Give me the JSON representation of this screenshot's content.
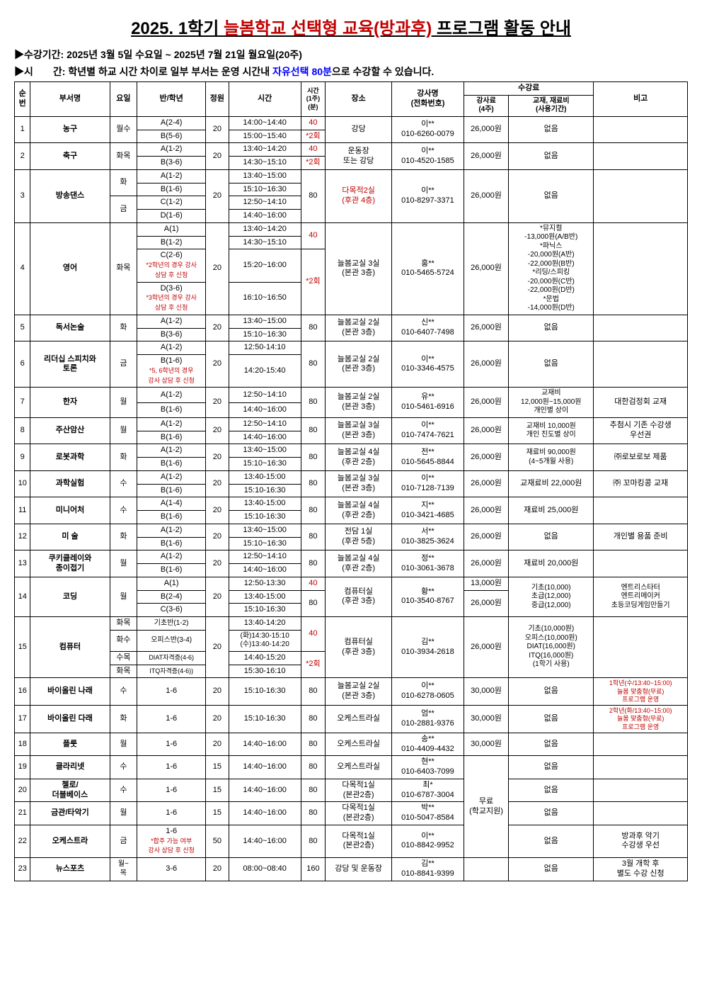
{
  "title_prefix": "2025. 1학기 ",
  "title_red": "늘봄학교 선택형 교육(방과후)",
  "title_suffix": " 프로그램 활동 안내",
  "period_label": "▶수강기간: 2025년 3월 5일 수요일 ~ 2025년 7월 21일 월요일(20주)",
  "time_label_prefix": "▶시　　간: 학년별 하교 시간 차이로 일부 부서는 운영 시간내 ",
  "time_label_blue": "자유선택 80분",
  "time_label_suffix": "으로 수강할 수 있습니다.",
  "headers": {
    "no": "순번",
    "dept": "부서명",
    "day": "요일",
    "class": "반/학년",
    "cap": "정원",
    "time": "시간",
    "dur": "시간\n(1주)\n(분)",
    "place": "장소",
    "teacher": "강사명\n(전화번호)",
    "fee_group": "수강료",
    "fee1": "강사료\n(4주)",
    "fee2": "교재, 재료비\n(사용기간)",
    "note": "비고"
  },
  "r1": {
    "no": "1",
    "dept": "농구",
    "day": "월수",
    "classA": "A(2-4)",
    "classB": "B(5-6)",
    "cap": "20",
    "timeA": "14:00~14:40",
    "timeB": "15:00~15:40",
    "dur": "40",
    "dur2": "*2회",
    "place": "강당",
    "teacher": "이**\n010-6260-0079",
    "fee1": "26,000원",
    "fee2": "없음",
    "note": ""
  },
  "r2": {
    "no": "2",
    "dept": "축구",
    "day": "화목",
    "classA": "A(1-2)",
    "classB": "B(3-6)",
    "cap": "20",
    "timeA": "13:40~14:20",
    "timeB": "14:30~15:10",
    "dur": "40",
    "dur2": "*2회",
    "place": "운동장\n또는 강당",
    "teacher": "이**\n010-4520-1585",
    "fee1": "26,000원",
    "fee2": "없음",
    "note": ""
  },
  "r3": {
    "no": "3",
    "dept": "방송댄스",
    "dayA": "화",
    "dayB": "금",
    "classA": "A(1-2)",
    "classB": "B(1-6)",
    "classC": "C(1-2)",
    "classD": "D(1-6)",
    "cap": "20",
    "timeA": "13:40~15:00",
    "timeB": "15:10~16:30",
    "timeC": "12:50~14:10",
    "timeD": "14:40~16:00",
    "dur": "80",
    "place": "다목적2실\n(후관 4층)",
    "teacher": "이**\n010-8297-3371",
    "fee1": "26,000원",
    "fee2": "없음",
    "note": ""
  },
  "r4": {
    "no": "4",
    "dept": "영어",
    "day": "화목",
    "classA": "A(1)",
    "classB": "B(1-2)",
    "classC": "C(2-6)",
    "classC_note": "*2학년의 경우 강사\n상담 후 신청",
    "classD": "D(3-6)",
    "classD_note": "*3학년의 경우 강사\n상담 후 신청",
    "cap": "20",
    "timeA": "13:40~14:20",
    "timeB": "14:30~15:10",
    "timeC": "15:20~16:00",
    "timeD": "16:10~16:50",
    "dur": "40",
    "dur2": "*2회",
    "place": "늘봄교실 3실\n(본관 3층)",
    "teacher": "홍**\n010-5465-5724",
    "fee1": "26,000원",
    "fee2": "*뮤지컬\n-13,000원(A/B반)\n*파닉스\n-20,000원(A반)\n-22,000원(B반)\n*리딩/스피킹\n-20,000원(C반)\n-22,000원(D반)\n*문법\n-14,000원(D반)",
    "note": ""
  },
  "r5": {
    "no": "5",
    "dept": "독서논술",
    "day": "화",
    "classA": "A(1-2)",
    "classB": "B(3-6)",
    "cap": "20",
    "timeA": "13:40~15:00",
    "timeB": "15:10~16:30",
    "dur": "80",
    "place": "늘봄교실 2실\n(본관 3층)",
    "teacher": "신**\n010-6407-7498",
    "fee1": "26,000원",
    "fee2": "없음",
    "note": ""
  },
  "r6": {
    "no": "6",
    "dept": "리더십 스피치와\n토론",
    "day": "금",
    "classA": "A(1-2)",
    "classB": "B(1-6)",
    "classB_note": "*5, 6학년의 경우\n강사 상담 후 신청",
    "cap": "20",
    "timeA": "12:50-14:10",
    "timeB": "14:20-15:40",
    "dur": "80",
    "place": "늘봄교실 2실\n(본관 3층)",
    "teacher": "이**\n010-3346-4575",
    "fee1": "26,000원",
    "fee2": "없음",
    "note": ""
  },
  "r7": {
    "no": "7",
    "dept": "한자",
    "day": "월",
    "classA": "A(1-2)",
    "classB": "B(1-6)",
    "cap": "20",
    "timeA": "12:50~14:10",
    "timeB": "14:40~16:00",
    "dur": "80",
    "place": "늘봄교실 2실\n(본관 3층)",
    "teacher": "유**\n010-5461-6916",
    "fee1": "26,000원",
    "fee2": "교재비\n12,000원~15,000원\n개인별 상이",
    "note": "대한검정회 교재"
  },
  "r8": {
    "no": "8",
    "dept": "주산암산",
    "day": "월",
    "classA": "A(1-2)",
    "classB": "B(1-6)",
    "cap": "20",
    "timeA": "12:50~14:10",
    "timeB": "14:40~16:00",
    "dur": "80",
    "place": "늘봄교실 3실\n(본관 3층)",
    "teacher": "이**\n010-7474-7621",
    "fee1": "26,000원",
    "fee2": "교재비 10,000원\n개인 진도별 상이",
    "note": "추첨시 기존 수강생\n우선권"
  },
  "r9": {
    "no": "9",
    "dept": "로봇과학",
    "day": "화",
    "classA": "A(1-2)",
    "classB": "B(1-6)",
    "cap": "20",
    "timeA": "13:40~15:00",
    "timeB": "15:10~16:30",
    "dur": "80",
    "place": "늘봄교실 4실\n(후관 2층)",
    "teacher": "전**\n010-5645-8844",
    "fee1": "26,000원",
    "fee2": "재료비 90,000원\n(4~5개월 사용)",
    "note": "㈜로보로보 제품"
  },
  "r10": {
    "no": "10",
    "dept": "과학실험",
    "day": "수",
    "classA": "A(1-2)",
    "classB": "B(1-6)",
    "cap": "20",
    "timeA": "13:40-15:00",
    "timeB": "15:10-16:30",
    "dur": "80",
    "place": "늘봄교실 3실\n(본관 3층)",
    "teacher": "이**\n010-7128-7139",
    "fee1": "26,000원",
    "fee2": "교재료비 22,000원",
    "note": "㈜ 꼬마킹콩 교재"
  },
  "r11": {
    "no": "11",
    "dept": "미니어처",
    "day": "수",
    "classA": "A(1-4)",
    "classB": "B(1-6)",
    "cap": "20",
    "timeA": "13:40-15:00",
    "timeB": "15:10-16:30",
    "dur": "80",
    "place": "늘봄교실 4실\n(후관 2층)",
    "teacher": "지**\n010-3421-4685",
    "fee1": "26,000원",
    "fee2": "재료비 25,000원",
    "note": ""
  },
  "r12": {
    "no": "12",
    "dept": "미 술",
    "day": "화",
    "classA": "A(1-2)",
    "classB": "B(1-6)",
    "cap": "20",
    "timeA": "13:40~15:00",
    "timeB": "15:10~16:30",
    "dur": "80",
    "place": "전담 1실\n(후관 5층)",
    "teacher": "서**\n010-3825-3624",
    "fee1": "26,000원",
    "fee2": "없음",
    "note": "개인별 용품 준비"
  },
  "r13": {
    "no": "13",
    "dept": "쿠키클레이와\n종이접기",
    "day": "월",
    "classA": "A(1-2)",
    "classB": "B(1-6)",
    "cap": "20",
    "timeA": "12:50~14:10",
    "timeB": "14:40~16:00",
    "dur": "80",
    "place": "늘봄교실 4실\n(후관 2층)",
    "teacher": "정**\n010-3061-3678",
    "fee1": "26,000원",
    "fee2": "재료비 20,000원",
    "note": ""
  },
  "r14": {
    "no": "14",
    "dept": "코딩",
    "day": "월",
    "classA": "A(1)",
    "classB": "B(2-4)",
    "classC": "C(3-6)",
    "cap": "20",
    "timeA": "12:50-13:30",
    "timeB": "13:40-15:00",
    "timeC": "15:10-16:30",
    "durA": "40",
    "durBC": "80",
    "place": "컴퓨터실\n(후관 3층)",
    "teacher": "황**\n010-3540-8767",
    "fee1A": "13,000원",
    "fee1BC": "26,000원",
    "fee2": "기초(10,000)\n초급(12,000)\n중급(12,000)",
    "note": "엔트리스타터\n엔트리메이커\n초등코딩게임만들기"
  },
  "r15": {
    "no": "15",
    "dept": "컴퓨터",
    "dayA": "화목",
    "dayB": "화수",
    "dayC": "수목",
    "dayD": "화목",
    "classA": "기초반(1-2)",
    "classB": "오피스반(3-4)",
    "classC": "DIAT자격증(4-6)",
    "classD": "ITQ자격증(4-6))",
    "cap": "20",
    "timeA": "13:40-14:20",
    "timeB": "(화)14:30-15:10\n(수)13:40-14:20",
    "timeC": "14:40-15:20",
    "timeD": "15:30-16:10",
    "dur": "40",
    "dur2": "*2회",
    "place": "컴퓨터실\n(후관 3층)",
    "teacher": "김**\n010-3934-2618",
    "fee1": "26,000원",
    "fee2": "기초(10,000원)\n오피스(10,000원)\nDIAT(16,000원)\nITQ(16,000원)\n(1학기 사용)",
    "note": ""
  },
  "r16": {
    "no": "16",
    "dept": "바이올린 나래",
    "day": "수",
    "class": "1-6",
    "cap": "20",
    "time": "15:10-16:30",
    "dur": "80",
    "place": "늘봄교실 2실\n(본관 3층)",
    "teacher": "이**\n010-6278-0605",
    "fee1": "30,000원",
    "fee2": "없음",
    "note": "1학년(수/13:40~15:00)\n늘봄 맞춤형(무료)\n프로그램 운영"
  },
  "r17": {
    "no": "17",
    "dept": "바이올린 다래",
    "day": "화",
    "class": "1-6",
    "cap": "20",
    "time": "15:10-16:30",
    "dur": "80",
    "place": "오케스트라실",
    "teacher": "엄**\n010-2881-9376",
    "fee1": "30,000원",
    "fee2": "없음",
    "note": "2학년(화/13:40~15:00)\n늘봄 맞춤형(무료)\n프로그램 운영"
  },
  "r18": {
    "no": "18",
    "dept": "플룻",
    "day": "월",
    "class": "1-6",
    "cap": "20",
    "time": "14:40~16:00",
    "dur": "80",
    "place": "오케스트라실",
    "teacher": "송**\n010-4409-4432",
    "fee1": "30,000원",
    "fee2": "없음",
    "note": ""
  },
  "r19": {
    "no": "19",
    "dept": "클라리넷",
    "day": "수",
    "class": "1-6",
    "cap": "15",
    "time": "14:40~16:00",
    "dur": "80",
    "place": "오케스트라실",
    "teacher": "현**\n010-6403-7099",
    "fee2": "없음",
    "note": ""
  },
  "r20": {
    "no": "20",
    "dept": "첼로/\n더블베이스",
    "day": "수",
    "class": "1-6",
    "cap": "15",
    "time": "14:40~16:00",
    "dur": "80",
    "place": "다목적1실\n(본관2층)",
    "teacher": "최*\n010-6787-3004",
    "fee2": "없음",
    "note": ""
  },
  "r21": {
    "no": "21",
    "dept": "금관/타악기",
    "day": "월",
    "class": "1-6",
    "cap": "15",
    "time": "14:40~16:00",
    "dur": "80",
    "place": "다목적1실\n(본관2층)",
    "teacher": "박**\n010-5047-8584",
    "fee2": "없음",
    "note": ""
  },
  "r22": {
    "no": "22",
    "dept": "오케스트라",
    "day": "금",
    "class": "1-6",
    "class_note": "*합주 가능 여부\n강사 상담 후 신청",
    "cap": "50",
    "time": "14:40~16:00",
    "dur": "80",
    "place": "다목적1실\n(본관2층)",
    "teacher": "이**\n010-8842-9952",
    "fee2": "없음",
    "note": "방과후 악기\n수강생 우선"
  },
  "r23": {
    "no": "23",
    "dept": "뉴스포츠",
    "day": "월~\n목",
    "class": "3-6",
    "cap": "20",
    "time": "08:00~08:40",
    "dur": "160",
    "place": "강당 및 운동장",
    "teacher": "김**\n010-8841-9399",
    "fee1": "",
    "fee2": "없음",
    "note": "3월 개학 후\n별도 수강 신청"
  },
  "fee_free": "무료\n(학교지원)"
}
